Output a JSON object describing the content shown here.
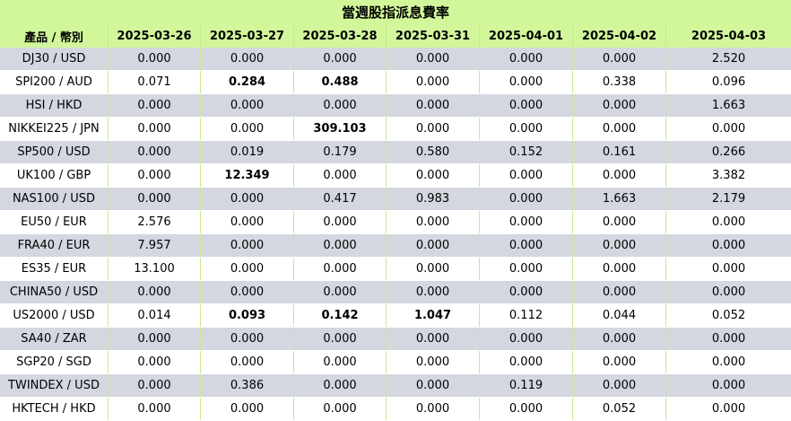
{
  "title": "當週股指派息費率",
  "columns": [
    "產品 / 幣別",
    "2025-03-26",
    "2025-03-27",
    "2025-03-28",
    "2025-03-31",
    "2025-04-01",
    "2025-04-02",
    "2025-04-03"
  ],
  "rows": [
    {
      "product": "DJ30 / USD",
      "values": [
        "0.000",
        "0.000",
        "0.000",
        "0.000",
        "0.000",
        "0.000",
        "2.520"
      ],
      "bold": [
        false,
        false,
        false,
        false,
        false,
        false,
        false
      ]
    },
    {
      "product": "SPI200 / AUD",
      "values": [
        "0.071",
        "0.284",
        "0.488",
        "0.000",
        "0.000",
        "0.338",
        "0.096"
      ],
      "bold": [
        false,
        true,
        true,
        false,
        false,
        false,
        false
      ]
    },
    {
      "product": "HSI / HKD",
      "values": [
        "0.000",
        "0.000",
        "0.000",
        "0.000",
        "0.000",
        "0.000",
        "1.663"
      ],
      "bold": [
        false,
        false,
        false,
        false,
        false,
        false,
        false
      ]
    },
    {
      "product": "NIKKEI225 / JPN",
      "values": [
        "0.000",
        "0.000",
        "309.103",
        "0.000",
        "0.000",
        "0.000",
        "0.000"
      ],
      "bold": [
        false,
        false,
        true,
        false,
        false,
        false,
        false
      ]
    },
    {
      "product": "SP500 / USD",
      "values": [
        "0.000",
        "0.019",
        "0.179",
        "0.580",
        "0.152",
        "0.161",
        "0.266"
      ],
      "bold": [
        false,
        false,
        false,
        false,
        false,
        false,
        false
      ]
    },
    {
      "product": "UK100 / GBP",
      "values": [
        "0.000",
        "12.349",
        "0.000",
        "0.000",
        "0.000",
        "0.000",
        "3.382"
      ],
      "bold": [
        false,
        true,
        false,
        false,
        false,
        false,
        false
      ]
    },
    {
      "product": "NAS100 / USD",
      "values": [
        "0.000",
        "0.000",
        "0.417",
        "0.983",
        "0.000",
        "1.663",
        "2.179"
      ],
      "bold": [
        false,
        false,
        false,
        false,
        false,
        false,
        false
      ]
    },
    {
      "product": "EU50 / EUR",
      "values": [
        "2.576",
        "0.000",
        "0.000",
        "0.000",
        "0.000",
        "0.000",
        "0.000"
      ],
      "bold": [
        false,
        false,
        false,
        false,
        false,
        false,
        false
      ]
    },
    {
      "product": "FRA40 / EUR",
      "values": [
        "7.957",
        "0.000",
        "0.000",
        "0.000",
        "0.000",
        "0.000",
        "0.000"
      ],
      "bold": [
        false,
        false,
        false,
        false,
        false,
        false,
        false
      ]
    },
    {
      "product": "ES35 / EUR",
      "values": [
        "13.100",
        "0.000",
        "0.000",
        "0.000",
        "0.000",
        "0.000",
        "0.000"
      ],
      "bold": [
        false,
        false,
        false,
        false,
        false,
        false,
        false
      ]
    },
    {
      "product": "CHINA50 / USD",
      "values": [
        "0.000",
        "0.000",
        "0.000",
        "0.000",
        "0.000",
        "0.000",
        "0.000"
      ],
      "bold": [
        false,
        false,
        false,
        false,
        false,
        false,
        false
      ]
    },
    {
      "product": "US2000 / USD",
      "values": [
        "0.014",
        "0.093",
        "0.142",
        "1.047",
        "0.112",
        "0.044",
        "0.052"
      ],
      "bold": [
        false,
        true,
        true,
        true,
        false,
        false,
        false
      ]
    },
    {
      "product": "SA40 / ZAR",
      "values": [
        "0.000",
        "0.000",
        "0.000",
        "0.000",
        "0.000",
        "0.000",
        "0.000"
      ],
      "bold": [
        false,
        false,
        false,
        false,
        false,
        false,
        false
      ]
    },
    {
      "product": "SGP20 / SGD",
      "values": [
        "0.000",
        "0.000",
        "0.000",
        "0.000",
        "0.000",
        "0.000",
        "0.000"
      ],
      "bold": [
        false,
        false,
        false,
        false,
        false,
        false,
        false
      ]
    },
    {
      "product": "TWINDEX / USD",
      "values": [
        "0.000",
        "0.386",
        "0.000",
        "0.000",
        "0.119",
        "0.000",
        "0.000"
      ],
      "bold": [
        false,
        false,
        false,
        false,
        false,
        false,
        false
      ]
    },
    {
      "product": "HKTECH / HKD",
      "values": [
        "0.000",
        "0.000",
        "0.000",
        "0.000",
        "0.000",
        "0.052",
        "0.000"
      ],
      "bold": [
        false,
        false,
        false,
        false,
        false,
        false,
        false
      ]
    }
  ]
}
